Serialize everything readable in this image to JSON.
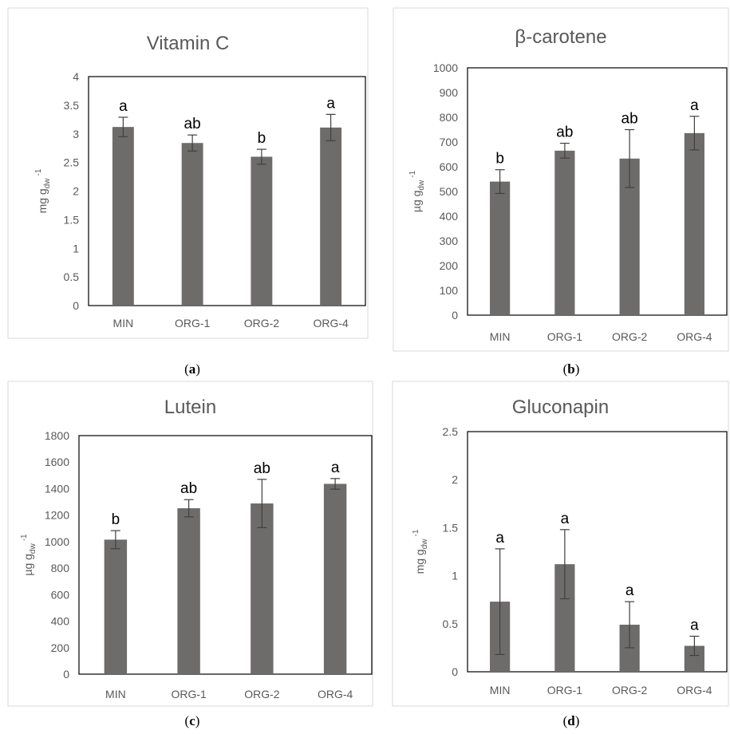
{
  "colors": {
    "bar": "#6e6b6b",
    "text": "#595959"
  },
  "chart_data": [
    {
      "type": "bar",
      "title": "Vitamin C",
      "panel_label": "a",
      "ylabel": {
        "main": "mg g",
        "sub": "dw",
        "sup": "-1"
      },
      "categories": [
        "MIN",
        "ORG-1",
        "ORG-2",
        "ORG-4"
      ],
      "values": [
        3.12,
        2.84,
        2.6,
        3.11
      ],
      "errors": [
        0.17,
        0.14,
        0.13,
        0.23
      ],
      "significance": [
        "a",
        "ab",
        "b",
        "a"
      ],
      "ylim": [
        0,
        4
      ],
      "yticks": [
        "0",
        "0.5",
        "1",
        "1.5",
        "2",
        "2.5",
        "3",
        "3.5",
        "4"
      ],
      "grid": false
    },
    {
      "type": "bar",
      "title": "β-carotene",
      "panel_label": "b",
      "ylabel": {
        "main": "µg g",
        "sub": "dw",
        "sup": "-1"
      },
      "categories": [
        "MIN",
        "ORG-1",
        "ORG-2",
        "ORG-4"
      ],
      "values": [
        540,
        665,
        633,
        736
      ],
      "errors": [
        48,
        30,
        117,
        68
      ],
      "significance": [
        "b",
        "ab",
        "ab",
        "a"
      ],
      "ylim": [
        0,
        1000
      ],
      "yticks": [
        "0",
        "100",
        "200",
        "300",
        "400",
        "500",
        "600",
        "700",
        "800",
        "900",
        "1000"
      ],
      "grid": false
    },
    {
      "type": "bar",
      "title": "Lutein",
      "panel_label": "c",
      "ylabel": {
        "main": "µg g",
        "sub": "dw",
        "sup": "-1"
      },
      "categories": [
        "MIN",
        "ORG-1",
        "ORG-2",
        "ORG-4"
      ],
      "values": [
        1015,
        1252,
        1288,
        1436
      ],
      "errors": [
        68,
        65,
        182,
        40
      ],
      "significance": [
        "b",
        "ab",
        "ab",
        "a"
      ],
      "ylim": [
        0,
        1800
      ],
      "yticks": [
        "0",
        "200",
        "400",
        "600",
        "800",
        "1000",
        "1200",
        "1400",
        "1600",
        "1800"
      ],
      "grid": false
    },
    {
      "type": "bar",
      "title": "Gluconapin",
      "panel_label": "d",
      "ylabel": {
        "main": "mg g",
        "sub": "dw",
        "sup": "-1"
      },
      "categories": [
        "MIN",
        "ORG-1",
        "ORG-2",
        "ORG-4"
      ],
      "values": [
        0.73,
        1.12,
        0.49,
        0.27
      ],
      "errors": [
        0.55,
        0.36,
        0.24,
        0.1
      ],
      "significance": [
        "a",
        "a",
        "a",
        "a"
      ],
      "ylim": [
        0,
        2.5
      ],
      "yticks": [
        "0",
        "0.5",
        "1",
        "1.5",
        "2",
        "2.5"
      ],
      "grid": false
    }
  ]
}
